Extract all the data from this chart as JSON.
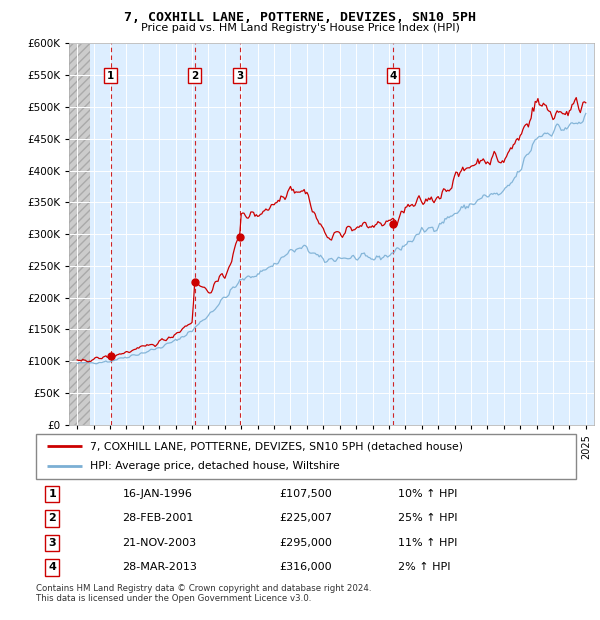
{
  "title": "7, COXHILL LANE, POTTERNE, DEVIZES, SN10 5PH",
  "subtitle": "Price paid vs. HM Land Registry's House Price Index (HPI)",
  "ylim": [
    0,
    600000
  ],
  "yticks": [
    0,
    50000,
    100000,
    150000,
    200000,
    250000,
    300000,
    350000,
    400000,
    450000,
    500000,
    550000,
    600000
  ],
  "ytick_labels": [
    "£0",
    "£50K",
    "£100K",
    "£150K",
    "£200K",
    "£250K",
    "£300K",
    "£350K",
    "£400K",
    "£450K",
    "£500K",
    "£550K",
    "£600K"
  ],
  "xlim_start": 1993.5,
  "xlim_end": 2025.5,
  "xticks": [
    1994,
    1995,
    1996,
    1997,
    1998,
    1999,
    2000,
    2001,
    2002,
    2003,
    2004,
    2005,
    2006,
    2007,
    2008,
    2009,
    2010,
    2011,
    2012,
    2013,
    2014,
    2015,
    2016,
    2017,
    2018,
    2019,
    2020,
    2021,
    2022,
    2023,
    2024,
    2025
  ],
  "hpi_color": "#7bafd4",
  "price_color": "#cc0000",
  "sale_dates": [
    1996.04,
    2001.16,
    2003.9,
    2013.24
  ],
  "sale_prices": [
    107500,
    225007,
    295000,
    316000
  ],
  "sale_labels": [
    "1",
    "2",
    "3",
    "4"
  ],
  "vline_color": "#cc0000",
  "dot_color": "#cc0000",
  "background_chart": "#ddeeff",
  "hatch_end": 1994.75,
  "legend_line1": "7, COXHILL LANE, POTTERNE, DEVIZES, SN10 5PH (detached house)",
  "legend_line2": "HPI: Average price, detached house, Wiltshire",
  "table_entries": [
    {
      "num": "1",
      "date": "16-JAN-1996",
      "price": "£107,500",
      "change": "10% ↑ HPI"
    },
    {
      "num": "2",
      "date": "28-FEB-2001",
      "price": "£225,007",
      "change": "25% ↑ HPI"
    },
    {
      "num": "3",
      "date": "21-NOV-2003",
      "price": "£295,000",
      "change": "11% ↑ HPI"
    },
    {
      "num": "4",
      "date": "28-MAR-2013",
      "price": "£316,000",
      "change": "2% ↑ HPI"
    }
  ],
  "footer": "Contains HM Land Registry data © Crown copyright and database right 2024.\nThis data is licensed under the Open Government Licence v3.0."
}
